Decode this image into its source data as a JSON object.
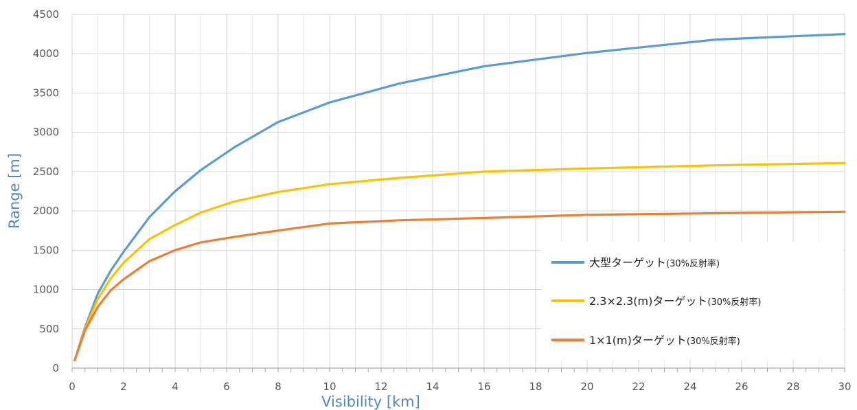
{
  "chart_data": {
    "type": "line",
    "xlabel": "Visibility [km]",
    "ylabel": "Range [m]",
    "xlim": [
      0,
      30
    ],
    "ylim": [
      0,
      4500
    ],
    "xticks": [
      0,
      2,
      4,
      6,
      8,
      10,
      12,
      14,
      16,
      18,
      20,
      22,
      24,
      26,
      28,
      30
    ],
    "yticks": [
      0,
      500,
      1000,
      1500,
      2000,
      2500,
      3000,
      3500,
      4000,
      4500
    ],
    "grid": true,
    "legend_position": "lower-right",
    "series": [
      {
        "name": "大型ターゲット",
        "name_note": "(30%反射率)",
        "color": "#5b9bd5",
        "x": [
          0.1,
          0.5,
          1,
          1.5,
          2,
          3,
          4,
          5,
          6.3,
          8,
          10,
          12.7,
          16,
          20,
          25,
          30
        ],
        "y": [
          100,
          520,
          950,
          1240,
          1480,
          1920,
          2250,
          2520,
          2810,
          3130,
          3380,
          3620,
          3840,
          4010,
          4180,
          4250
        ]
      },
      {
        "name": "2.3×2.3(m)ターゲット",
        "name_note": "(30%反射率)",
        "color": "#ffc000",
        "x": [
          0.1,
          0.5,
          1,
          1.5,
          2,
          3,
          4,
          5,
          6.3,
          8,
          10,
          12.7,
          16,
          20,
          25,
          30
        ],
        "y": [
          100,
          500,
          880,
          1140,
          1340,
          1640,
          1820,
          1980,
          2120,
          2240,
          2340,
          2420,
          2500,
          2540,
          2580,
          2610
        ]
      },
      {
        "name": "1×1(m)ターゲット",
        "name_note": "(30%反射率)",
        "color": "#ed7d31",
        "x": [
          0.1,
          0.5,
          1,
          1.5,
          2,
          3,
          4,
          5,
          6.3,
          8,
          10,
          12.7,
          16,
          20,
          25,
          30
        ],
        "y": [
          100,
          480,
          780,
          990,
          1130,
          1360,
          1500,
          1600,
          1670,
          1750,
          1840,
          1880,
          1910,
          1950,
          1970,
          1990
        ]
      }
    ]
  }
}
